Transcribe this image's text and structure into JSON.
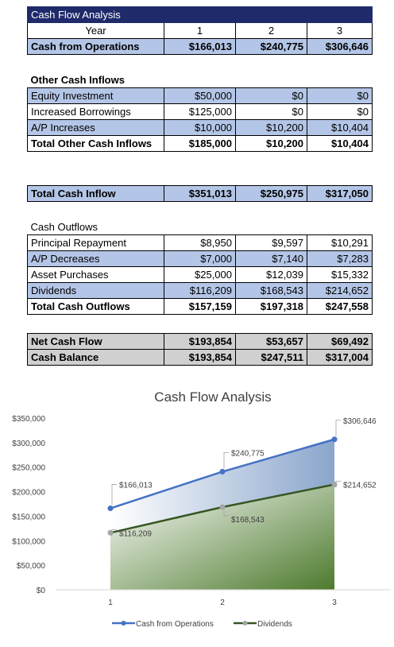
{
  "table": {
    "title": "Cash Flow Analysis",
    "year_label": "Year",
    "years": [
      "1",
      "2",
      "3"
    ],
    "cash_from_operations": {
      "label": "Cash from Operations",
      "values": [
        "$166,013",
        "$240,775",
        "$306,646"
      ]
    },
    "other_inflows_header": "Other Cash Inflows",
    "other_inflows": [
      {
        "label": "Equity Investment",
        "values": [
          "$50,000",
          "$0",
          "$0"
        ]
      },
      {
        "label": "Increased Borrowings",
        "values": [
          "$125,000",
          "$0",
          "$0"
        ]
      },
      {
        "label": "A/P Increases",
        "values": [
          "$10,000",
          "$10,200",
          "$10,404"
        ]
      }
    ],
    "total_other_inflows": {
      "label": "Total Other Cash Inflows",
      "values": [
        "$185,000",
        "$10,200",
        "$10,404"
      ]
    },
    "total_cash_inflow": {
      "label": "Total Cash Inflow",
      "values": [
        "$351,013",
        "$250,975",
        "$317,050"
      ]
    },
    "outflows_header": "Cash Outflows",
    "outflows": [
      {
        "label": "Principal Repayment",
        "values": [
          "$8,950",
          "$9,597",
          "$10,291"
        ]
      },
      {
        "label": "A/P Decreases",
        "values": [
          "$7,000",
          "$7,140",
          "$7,283"
        ]
      },
      {
        "label": "Asset Purchases",
        "values": [
          "$25,000",
          "$12,039",
          "$15,332"
        ]
      },
      {
        "label": "Dividends",
        "values": [
          "$116,209",
          "$168,543",
          "$214,652"
        ]
      }
    ],
    "total_outflows": {
      "label": "Total Cash Outflows",
      "values": [
        "$157,159",
        "$197,318",
        "$247,558"
      ]
    },
    "net_cash_flow": {
      "label": "Net Cash Flow",
      "values": [
        "$193,854",
        "$53,657",
        "$69,492"
      ]
    },
    "cash_balance": {
      "label": "Cash Balance",
      "values": [
        "$193,854",
        "$247,511",
        "$317,004"
      ]
    }
  },
  "chart_data": {
    "type": "area",
    "title": "Cash Flow Analysis",
    "categories": [
      "1",
      "2",
      "3"
    ],
    "ylim": [
      0,
      350000
    ],
    "yticks": [
      {
        "value": 0,
        "label": "$0"
      },
      {
        "value": 50000,
        "label": "$50,000"
      },
      {
        "value": 100000,
        "label": "$100,000"
      },
      {
        "value": 150000,
        "label": "$150,000"
      },
      {
        "value": 200000,
        "label": "$200,000"
      },
      {
        "value": 250000,
        "label": "$250,000"
      },
      {
        "value": 300000,
        "label": "$300,000"
      },
      {
        "value": 350000,
        "label": "$350,000"
      }
    ],
    "grid": false,
    "legend": "bottom",
    "series": [
      {
        "name": "Cash from Operations",
        "color": "#4472c4",
        "values": [
          166013,
          240775,
          306646
        ],
        "labels": [
          "$166,013",
          "$240,775",
          "$306,646"
        ]
      },
      {
        "name": "Dividends",
        "color": "#375623",
        "values": [
          116209,
          168543,
          214652
        ],
        "labels": [
          "$116,209",
          "$168,543",
          "$214,652"
        ]
      }
    ]
  }
}
